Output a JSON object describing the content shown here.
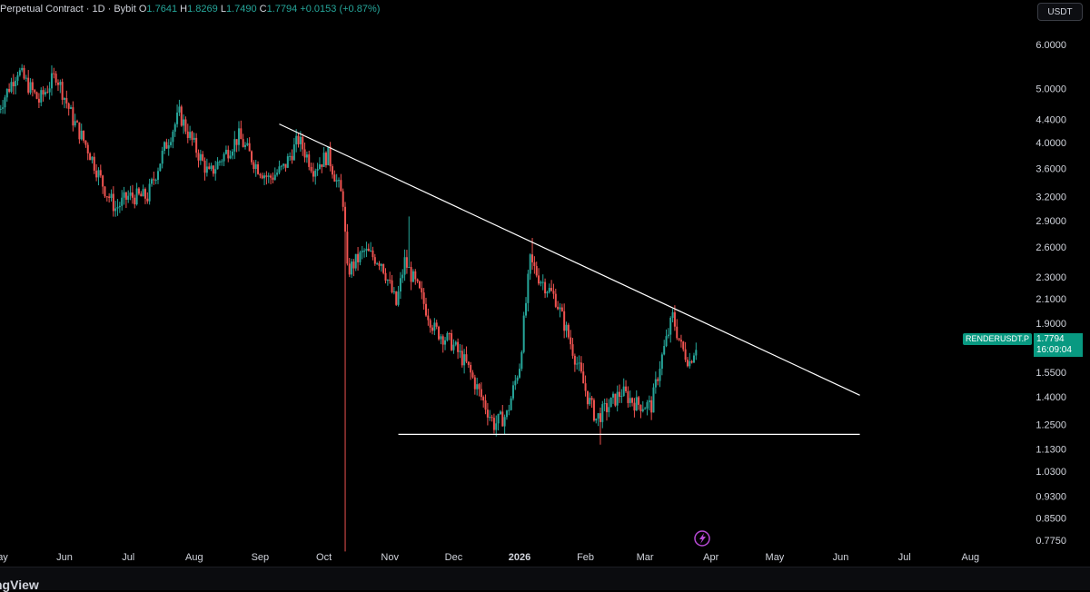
{
  "header": {
    "title": "Perpetual Contract · 1D · Bybit",
    "open_label": "O",
    "open": "1.7641",
    "high_label": "H",
    "high": "1.8269",
    "low_label": "L",
    "low": "1.7490",
    "close_label": "C",
    "close": "1.7794",
    "change": "+0.0153 (+0.87%)"
  },
  "currency_button": "USDT",
  "price_tag": {
    "symbol": "RENDERUSDT.P",
    "price": "1.7794",
    "countdown": "16:09:04"
  },
  "brand": "ngView",
  "colors": {
    "up": "#26a69a",
    "down": "#ef5350",
    "background": "#000000",
    "trendline": "#ffffff"
  },
  "chart_data": {
    "type": "candlestick",
    "y_scale": "log",
    "y_ticks": [
      "6.0000",
      "5.0000",
      "4.4000",
      "4.0000",
      "3.6000",
      "3.2000",
      "2.9000",
      "2.6000",
      "2.3000",
      "2.1000",
      "1.9000",
      "1.5500",
      "1.4000",
      "1.2500",
      "1.1300",
      "1.0300",
      "0.9300",
      "0.8500",
      "0.7750"
    ],
    "x_ticks": [
      "ay",
      "Jun",
      "Jul",
      "Aug",
      "Sep",
      "Oct",
      "Nov",
      "Dec",
      "2026",
      "Feb",
      "Mar",
      "Apr",
      "May",
      "Jun",
      "Jul",
      "Aug"
    ],
    "ylim": [
      0.74,
      6.6
    ],
    "close_series": [
      {
        "date": "2025-05-01",
        "close": 4.6
      },
      {
        "date": "2025-05-10",
        "close": 5.4
      },
      {
        "date": "2025-05-20",
        "close": 4.75
      },
      {
        "date": "2025-05-28",
        "close": 5.3
      },
      {
        "date": "2025-06-05",
        "close": 4.4
      },
      {
        "date": "2025-06-12",
        "close": 3.9
      },
      {
        "date": "2025-06-20",
        "close": 3.3
      },
      {
        "date": "2025-06-25",
        "close": 3.05
      },
      {
        "date": "2025-07-01",
        "close": 3.2
      },
      {
        "date": "2025-07-10",
        "close": 3.2
      },
      {
        "date": "2025-07-18",
        "close": 3.9
      },
      {
        "date": "2025-07-25",
        "close": 4.5
      },
      {
        "date": "2025-08-01",
        "close": 3.95
      },
      {
        "date": "2025-08-08",
        "close": 3.5
      },
      {
        "date": "2025-08-15",
        "close": 3.8
      },
      {
        "date": "2025-08-22",
        "close": 4.1
      },
      {
        "date": "2025-08-30",
        "close": 3.65
      },
      {
        "date": "2025-09-05",
        "close": 3.45
      },
      {
        "date": "2025-09-12",
        "close": 3.6
      },
      {
        "date": "2025-09-19",
        "close": 4.05
      },
      {
        "date": "2025-09-26",
        "close": 3.6
      },
      {
        "date": "2025-10-03",
        "close": 3.8
      },
      {
        "date": "2025-10-10",
        "close": 3.15
      },
      {
        "date": "2025-10-12",
        "close": 2.35
      },
      {
        "date": "2025-10-20",
        "close": 2.55
      },
      {
        "date": "2025-10-28",
        "close": 2.45
      },
      {
        "date": "2025-11-04",
        "close": 2.05
      },
      {
        "date": "2025-11-08",
        "close": 2.45
      },
      {
        "date": "2025-11-15",
        "close": 2.15
      },
      {
        "date": "2025-11-22",
        "close": 1.85
      },
      {
        "date": "2025-11-30",
        "close": 1.75
      },
      {
        "date": "2025-12-07",
        "close": 1.6
      },
      {
        "date": "2025-12-14",
        "close": 1.4
      },
      {
        "date": "2025-12-20",
        "close": 1.25
      },
      {
        "date": "2025-12-26",
        "close": 1.3
      },
      {
        "date": "2026-01-01",
        "close": 1.6
      },
      {
        "date": "2026-01-06",
        "close": 2.45
      },
      {
        "date": "2026-01-10",
        "close": 2.3
      },
      {
        "date": "2026-01-18",
        "close": 2.1
      },
      {
        "date": "2026-01-25",
        "close": 1.75
      },
      {
        "date": "2026-02-02",
        "close": 1.4
      },
      {
        "date": "2026-02-06",
        "close": 1.28
      },
      {
        "date": "2026-02-12",
        "close": 1.35
      },
      {
        "date": "2026-02-18",
        "close": 1.43
      },
      {
        "date": "2026-02-25",
        "close": 1.36
      },
      {
        "date": "2026-03-04",
        "close": 1.35
      },
      {
        "date": "2026-03-08",
        "close": 1.6
      },
      {
        "date": "2026-03-14",
        "close": 1.95
      },
      {
        "date": "2026-03-18",
        "close": 1.72
      },
      {
        "date": "2026-03-22",
        "close": 1.62
      },
      {
        "date": "2026-03-26",
        "close": 1.78
      }
    ],
    "trendlines": [
      {
        "from": {
          "date": "2025-09-10",
          "price": 4.32
        },
        "to": {
          "date": "2026-06-10",
          "price": 1.41
        }
      },
      {
        "from": {
          "date": "2025-11-05",
          "price": 1.2
        },
        "to": {
          "date": "2026-06-10",
          "price": 1.2
        }
      }
    ]
  }
}
